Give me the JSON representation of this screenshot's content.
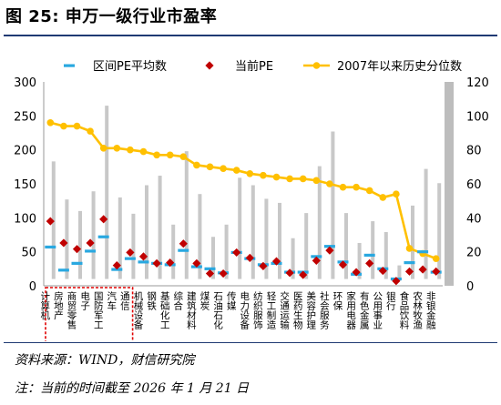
{
  "header": {
    "title": "图 25:  申万一级行业市盈率"
  },
  "footer": {
    "source": "资料来源：WIND，财信研究院",
    "note": "注：当前的时间截至 2026 年 1 月 21 日"
  },
  "colors": {
    "mean_marker": "#29a8e0",
    "current_marker": "#c00000",
    "percentile_line": "#ffc000",
    "range_bar": "#c8c8c8",
    "highlight_box": "#e00000",
    "axis_text": "#000000"
  },
  "chart_data": {
    "type": "bar",
    "title": "",
    "xlabel": "",
    "ylabel": "",
    "ylim": [
      0,
      300
    ],
    "y2lim": [
      0,
      120
    ],
    "yticks": [
      0,
      50,
      100,
      150,
      200,
      250,
      300
    ],
    "y2ticks": [
      0,
      20,
      40,
      60,
      80,
      100,
      120
    ],
    "legend_position": "top",
    "legend": [
      "区间PE平均数",
      "当前PE",
      "2007年以来历史分位数"
    ],
    "categories": [
      "计算机",
      "房地产",
      "商贸零售",
      "电子",
      "国防军工",
      "汽车",
      "通信",
      "机械设备",
      "钢铁",
      "基础化工",
      "综合",
      "建筑材料",
      "煤炭",
      "石油石化",
      "传媒",
      "电力设备",
      "纺织服饰",
      "轻工制造",
      "交通运输",
      "医药生物",
      "美容护理",
      "社会服务",
      "环保",
      "家用电器",
      "有色金属",
      "公用事业",
      "银行",
      "食品饮料",
      "农林牧渔",
      "非银金融"
    ],
    "highlighted_categories": [
      "计算机",
      "房地产",
      "商贸零售",
      "电子",
      "国防军工",
      "汽车"
    ],
    "series": [
      {
        "name": "区间PE平均数",
        "axis": "left",
        "style": "dash-marker",
        "values": [
          57,
          23,
          33,
          51,
          72,
          24,
          40,
          35,
          33,
          31,
          52,
          28,
          25,
          19,
          49,
          40,
          31,
          33,
          20,
          20,
          43,
          58,
          35,
          17,
          45,
          25,
          10,
          34,
          50,
          20
        ]
      },
      {
        "name": "当前PE",
        "axis": "left",
        "style": "diamond-marker",
        "values": [
          95,
          63,
          54,
          63,
          98,
          30,
          49,
          43,
          33,
          34,
          62,
          33,
          18,
          18,
          49,
          41,
          29,
          36,
          19,
          16,
          37,
          52,
          31,
          20,
          33,
          22,
          7,
          21,
          24,
          21
        ]
      },
      {
        "name": "2007年以来历史分位数",
        "axis": "right",
        "style": "line-circle",
        "values": [
          96,
          94,
          94,
          91,
          81,
          81,
          80,
          79,
          77,
          77,
          76,
          71,
          70,
          69,
          68,
          66,
          65,
          64,
          63,
          63,
          62,
          60,
          58,
          58,
          56,
          52,
          54,
          22,
          19,
          16
        ]
      },
      {
        "name": "range_low",
        "axis": "left",
        "style": "range-bar",
        "values": [
          10,
          10,
          10,
          10,
          10,
          10,
          10,
          10,
          10,
          10,
          10,
          10,
          10,
          10,
          10,
          10,
          10,
          10,
          10,
          10,
          10,
          10,
          10,
          10,
          10,
          10,
          10,
          10,
          10,
          10
        ]
      },
      {
        "name": "range_high",
        "axis": "left",
        "style": "range-bar",
        "values": [
          183,
          127,
          110,
          139,
          265,
          130,
          106,
          148,
          162,
          90,
          198,
          135,
          72,
          90,
          159,
          148,
          128,
          122,
          70,
          107,
          176,
          227,
          107,
          63,
          95,
          79,
          30,
          118,
          172,
          151
        ]
      }
    ]
  }
}
